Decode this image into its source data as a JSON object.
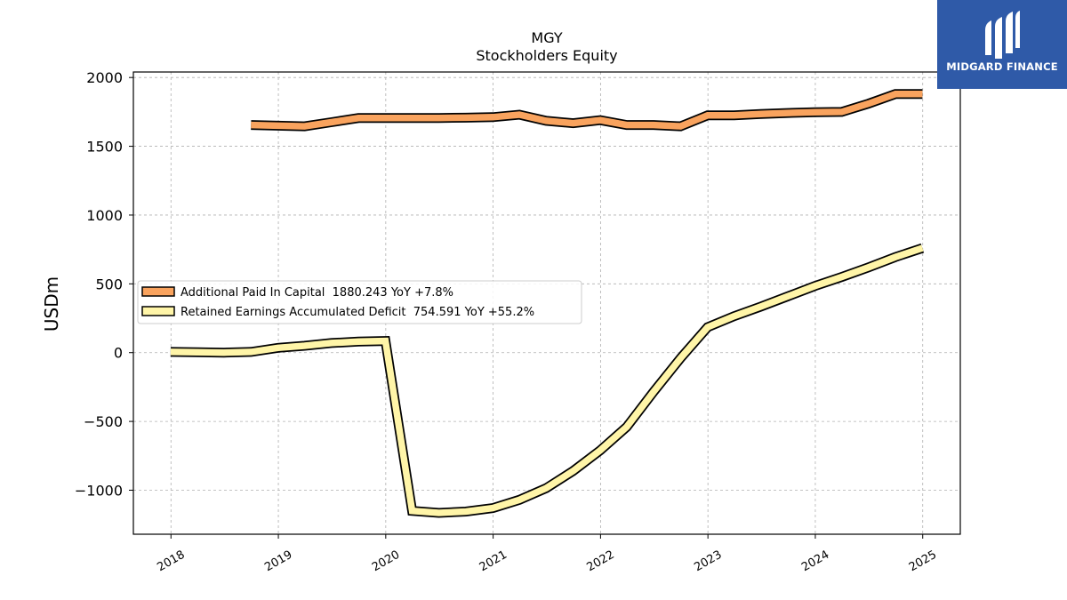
{
  "logo": {
    "text": "MIDGARD FINANCE",
    "color": "#2f5aa8"
  },
  "chart_data": {
    "type": "line",
    "title": "MGY",
    "subtitle": "Stockholders  Equity",
    "xlabel": "",
    "ylabel": "USDm",
    "xlim": [
      2017.65,
      2025.35
    ],
    "ylim": [
      -1320,
      2040
    ],
    "grid": true,
    "legend_position": "center-left",
    "x_ticks": [
      "2018",
      "2019",
      "2020",
      "2021",
      "2022",
      "2023",
      "2024",
      "2025"
    ],
    "y_ticks": [
      2000,
      1500,
      1000,
      500,
      0,
      -500,
      -1000
    ],
    "y_tick_labels": [
      "2000",
      "1500",
      "1000",
      "500",
      "0",
      "−500",
      "−1000"
    ],
    "series": [
      {
        "name": "Additional Paid In Capital  1880.243 YoY +7.8%",
        "color": "#f9a35e",
        "x": [
          "2018-09-30",
          "2018-12-31",
          "2019-03-31",
          "2019-06-30",
          "2019-09-30",
          "2019-12-31",
          "2020-03-31",
          "2020-06-30",
          "2020-09-30",
          "2020-12-31",
          "2021-03-31",
          "2021-06-30",
          "2021-09-30",
          "2021-12-31",
          "2022-03-31",
          "2022-06-30",
          "2022-09-30",
          "2022-12-31",
          "2023-03-31",
          "2023-06-30",
          "2023-09-30",
          "2023-12-31",
          "2024-03-31",
          "2024-06-30",
          "2024-09-30",
          "2024-12-31"
        ],
        "values": [
          1655,
          1650,
          1645,
          1675,
          1705,
          1705,
          1705,
          1706,
          1708,
          1712,
          1730,
          1685,
          1668,
          1690,
          1655,
          1655,
          1645,
          1725,
          1725,
          1735,
          1742,
          1748,
          1750,
          1810,
          1880,
          1880
        ]
      },
      {
        "name": "Retained Earnings Accumulated Deficit  754.591 YoY +55.2%",
        "color": "#fff5a8",
        "x": [
          "2017-12-31",
          "2018-03-31",
          "2018-06-30",
          "2018-09-30",
          "2018-12-31",
          "2019-03-31",
          "2019-06-30",
          "2019-09-30",
          "2019-12-31",
          "2020-03-31",
          "2020-06-30",
          "2020-09-30",
          "2020-12-31",
          "2021-03-31",
          "2021-06-30",
          "2021-09-30",
          "2021-12-31",
          "2022-03-31",
          "2022-06-30",
          "2022-09-30",
          "2022-12-31",
          "2023-03-31",
          "2023-06-30",
          "2023-09-30",
          "2023-12-31",
          "2024-03-31",
          "2024-06-30",
          "2024-09-30",
          "2024-12-31"
        ],
        "values": [
          5,
          3,
          0,
          5,
          35,
          50,
          70,
          80,
          85,
          -1150,
          -1165,
          -1155,
          -1130,
          -1070,
          -985,
          -860,
          -710,
          -540,
          -285,
          -40,
          185,
          265,
          335,
          410,
          485,
          550,
          620,
          695,
          760
        ]
      }
    ]
  }
}
